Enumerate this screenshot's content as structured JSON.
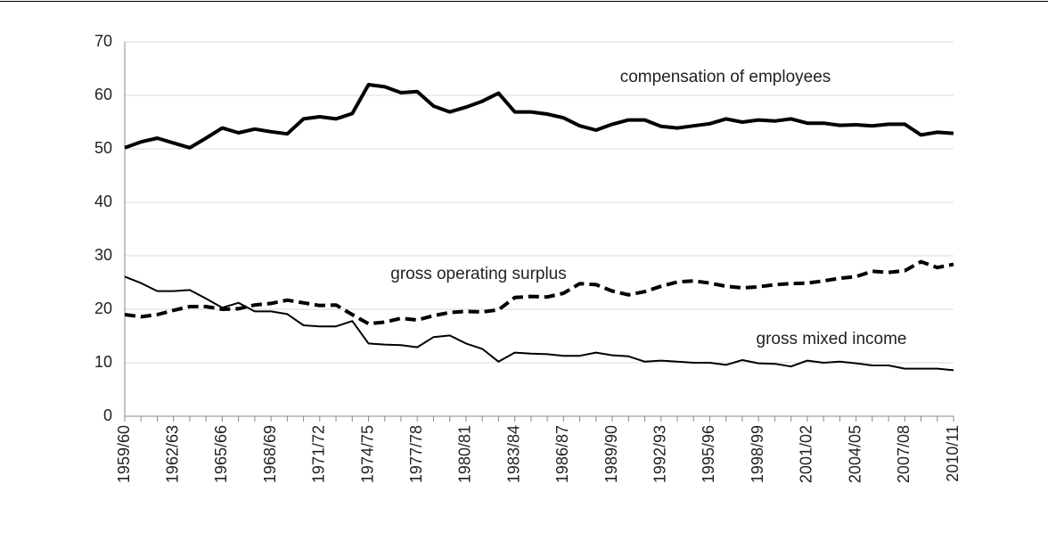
{
  "chart_data": {
    "type": "line",
    "categories": [
      "1959/60",
      null,
      null,
      "1962/63",
      null,
      null,
      "1965/66",
      null,
      null,
      "1968/69",
      null,
      null,
      "1971/72",
      null,
      null,
      "1974/75",
      null,
      null,
      "1977/78",
      null,
      null,
      "1980/81",
      null,
      null,
      "1983/84",
      null,
      null,
      "1986/87",
      null,
      null,
      "1989/90",
      null,
      null,
      "1992/93",
      null,
      null,
      "1995/96",
      null,
      null,
      "1998/99",
      null,
      null,
      "2001/02",
      null,
      null,
      "2004/05",
      null,
      null,
      "2007/08",
      null,
      null,
      "2010/11"
    ],
    "series": [
      {
        "name": "compensation of employees",
        "color": "#000000",
        "line_style": "solid",
        "line_weight": "thick",
        "values": [
          50.2,
          51.3,
          52.0,
          51.1,
          50.2,
          52.0,
          53.9,
          53.0,
          53.7,
          53.2,
          52.8,
          55.6,
          56.0,
          55.6,
          56.6,
          62.0,
          61.6,
          60.5,
          60.7,
          58.0,
          56.9,
          57.8,
          58.9,
          60.4,
          56.9,
          56.9,
          56.5,
          55.8,
          54.3,
          53.5,
          54.6,
          55.4,
          55.4,
          54.2,
          53.9,
          54.3,
          54.7,
          55.6,
          55.0,
          55.4,
          55.2,
          55.6,
          54.8,
          54.8,
          54.4,
          54.5,
          54.3,
          54.6,
          54.6,
          52.6,
          53.1,
          52.9
        ]
      },
      {
        "name": "gross operating surplus",
        "color": "#000000",
        "line_style": "dashed",
        "line_weight": "thick",
        "values": [
          19.0,
          18.6,
          19.0,
          19.8,
          20.5,
          20.5,
          20.0,
          20.1,
          20.8,
          21.1,
          21.7,
          21.2,
          20.7,
          20.8,
          19.0,
          17.3,
          17.6,
          18.3,
          18.0,
          18.8,
          19.4,
          19.6,
          19.5,
          19.9,
          22.2,
          22.4,
          22.3,
          23.0,
          24.8,
          24.6,
          23.4,
          22.7,
          23.3,
          24.3,
          25.1,
          25.3,
          24.9,
          24.3,
          24.0,
          24.2,
          24.6,
          24.8,
          24.9,
          25.3,
          25.8,
          26.1,
          27.1,
          26.9,
          27.2,
          28.9,
          27.8,
          28.4
        ]
      },
      {
        "name": "gross mixed income",
        "color": "#000000",
        "line_style": "solid",
        "line_weight": "thin",
        "values": [
          26.1,
          24.9,
          23.4,
          23.4,
          23.6,
          22.0,
          20.3,
          21.2,
          19.6,
          19.6,
          19.1,
          17.0,
          16.8,
          16.8,
          17.8,
          13.6,
          13.4,
          13.3,
          12.9,
          14.8,
          15.1,
          13.6,
          12.6,
          10.2,
          11.9,
          11.7,
          11.6,
          11.3,
          11.3,
          11.9,
          11.4,
          11.2,
          10.2,
          10.4,
          10.2,
          10.0,
          10.0,
          9.6,
          10.5,
          9.9,
          9.8,
          9.3,
          10.4,
          10.0,
          10.2,
          9.9,
          9.5,
          9.5,
          8.9,
          8.9,
          8.9,
          8.6
        ]
      }
    ],
    "ylim": [
      0,
      70
    ],
    "yticks": [
      0,
      10,
      20,
      30,
      40,
      50,
      60,
      70
    ],
    "grid": true
  }
}
